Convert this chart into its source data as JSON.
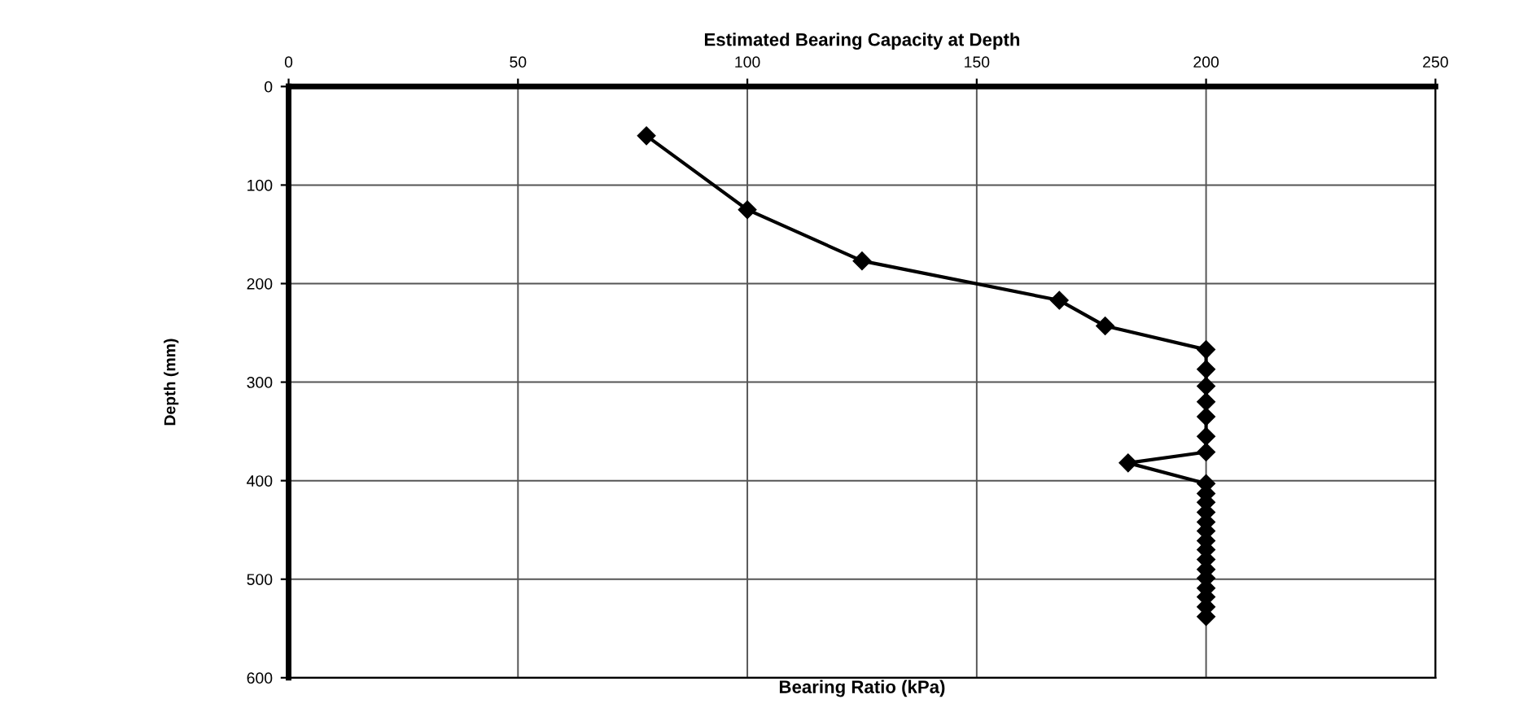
{
  "chart_data": {
    "type": "line",
    "title": "Estimated Bearing Capacity at Depth",
    "xlabel": "Bearing Ratio (kPa)",
    "ylabel": "Depth (mm)",
    "series": [
      {
        "color": "#000000",
        "x": [
          78,
          100,
          125,
          168,
          178,
          200,
          200,
          200,
          200,
          200,
          200,
          200,
          183,
          200,
          200,
          200,
          200,
          200,
          200,
          200,
          200,
          200,
          200,
          200,
          200,
          200,
          200,
          200
        ],
        "values": [
          50,
          125,
          177,
          217,
          243,
          267,
          287,
          304,
          320,
          335,
          355,
          371,
          382,
          403,
          413,
          422,
          432,
          442,
          451,
          461,
          470,
          480,
          490,
          499,
          509,
          518,
          528,
          538
        ]
      }
    ],
    "xlim": [
      0,
      250
    ],
    "xticks": [
      0,
      50,
      100,
      150,
      200,
      250
    ],
    "ylim": [
      600,
      0
    ],
    "yticks": [
      0,
      100,
      200,
      300,
      400,
      500,
      600
    ],
    "grid": true,
    "marker": "diamond",
    "line_style": "solid",
    "legend": false
  }
}
